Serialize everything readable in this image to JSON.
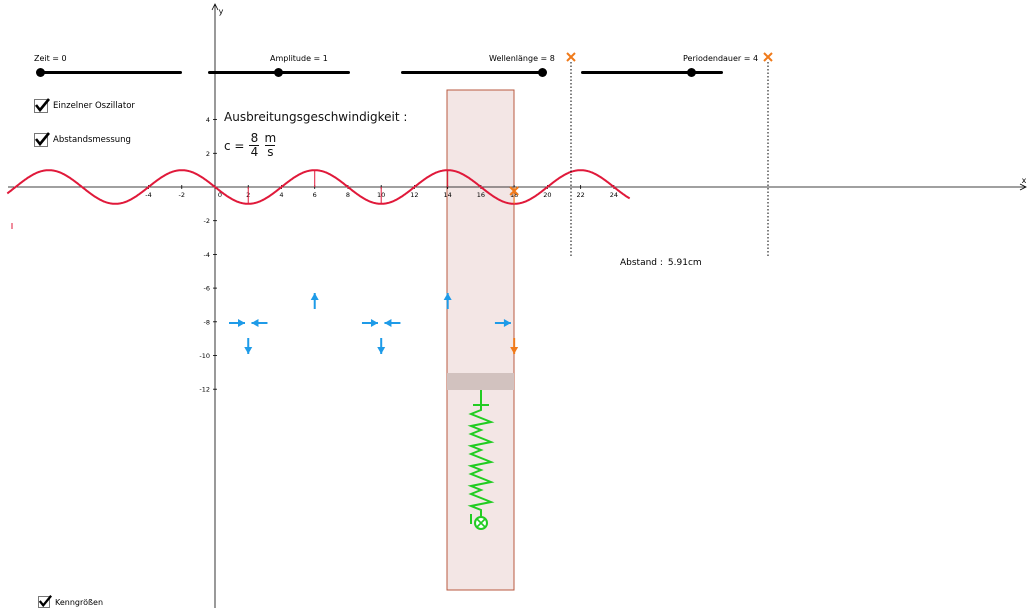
{
  "sliders": {
    "zeit": {
      "label": "Zeit = 0",
      "value": 0
    },
    "amplitude": {
      "label": "Amplitude = 1",
      "value": 1
    },
    "wellenlaenge": {
      "label": "Wellenlänge = 8",
      "value": 8
    },
    "periodendauer": {
      "label": "Periodendauer = 4",
      "value": 4
    }
  },
  "checkboxes": {
    "einzelner_oszillator": {
      "label": "Einzelner Oszillator",
      "checked": true
    },
    "abstandsmessung": {
      "label": "Abstandsmessung",
      "checked": true
    },
    "kenngroessen": {
      "label": "Kenngrößen",
      "checked": true
    }
  },
  "speed": {
    "title": "Ausbreitungsgeschwindigkeit :",
    "lhs": "c =",
    "num": "8",
    "den": "4",
    "unit_num": "m",
    "unit_den": "s"
  },
  "abstand": {
    "label": "Abstand :",
    "value": "5.91cm"
  },
  "axes": {
    "x_label": "x",
    "y_label": "y",
    "x_ticks": [
      "-4",
      "-2",
      "0",
      "2",
      "4",
      "6",
      "8",
      "10",
      "12",
      "14",
      "16",
      "18",
      "20",
      "22",
      "24"
    ],
    "y_ticks": [
      "4",
      "2",
      "-2",
      "-4",
      "-6",
      "-8",
      "-10",
      "-12"
    ],
    "origin_label": "0"
  },
  "colors": {
    "wave": "#e0193a",
    "arrows": "#1e9be8",
    "highlight": "#f07a1a",
    "spring": "#22cc22",
    "box_fill": "#f3e6e5",
    "box_stroke": "#b85a40"
  },
  "icons": {
    "marker": "cross-marker-icon",
    "checkmark": "checkmark-icon",
    "spring": "spring-icon"
  },
  "wave": {
    "amplitude": 1,
    "wavelength": 8,
    "period": 4,
    "time": 0
  }
}
